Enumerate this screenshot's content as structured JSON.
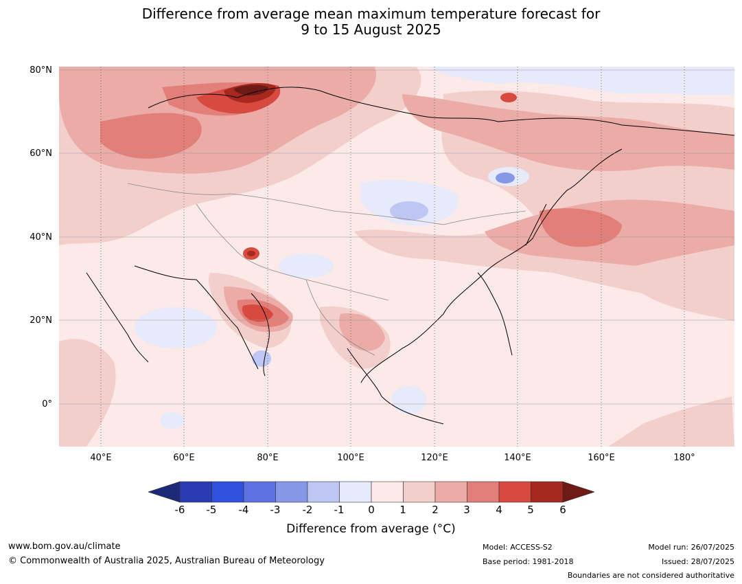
{
  "title": {
    "line1": "Difference from average mean maximum temperature forecast for",
    "line2": "9 to 15 August 2025"
  },
  "map": {
    "lat_labels": [
      "80°N",
      "60°N",
      "40°N",
      "20°N",
      "0°"
    ],
    "lon_labels": [
      "40°E",
      "60°E",
      "80°E",
      "100°E",
      "120°E",
      "140°E",
      "160°E",
      "180°"
    ],
    "lon_range": [
      30,
      192
    ],
    "lat_range": [
      -10,
      81
    ]
  },
  "colorbar": {
    "label": "Difference from average (°C)",
    "ticks": [
      "-6",
      "-5",
      "-4",
      "-3",
      "-2",
      "-1",
      "0",
      "1",
      "2",
      "3",
      "4",
      "5",
      "6"
    ],
    "colors": [
      "#1d2a78",
      "#2a3cb0",
      "#3050de",
      "#5c72e2",
      "#8797e8",
      "#bec6f3",
      "#e6eafa",
      "#fbeae8",
      "#f3cfcc",
      "#ebaba6",
      "#e37f79",
      "#d64a40",
      "#a7281f",
      "#6e1a15"
    ]
  },
  "footer": {
    "website": "www.bom.gov.au/climate",
    "copyright": "© Commonwealth of Australia 2025, Australian Bureau of Meteorology",
    "model": "Model: ACCESS-S2",
    "base_period": "Base period: 1981-2018",
    "model_run": "Model run: 26/07/2025",
    "issued": "Issued: 28/07/2025",
    "disclaimer": "Boundaries are not considered authoritative"
  }
}
